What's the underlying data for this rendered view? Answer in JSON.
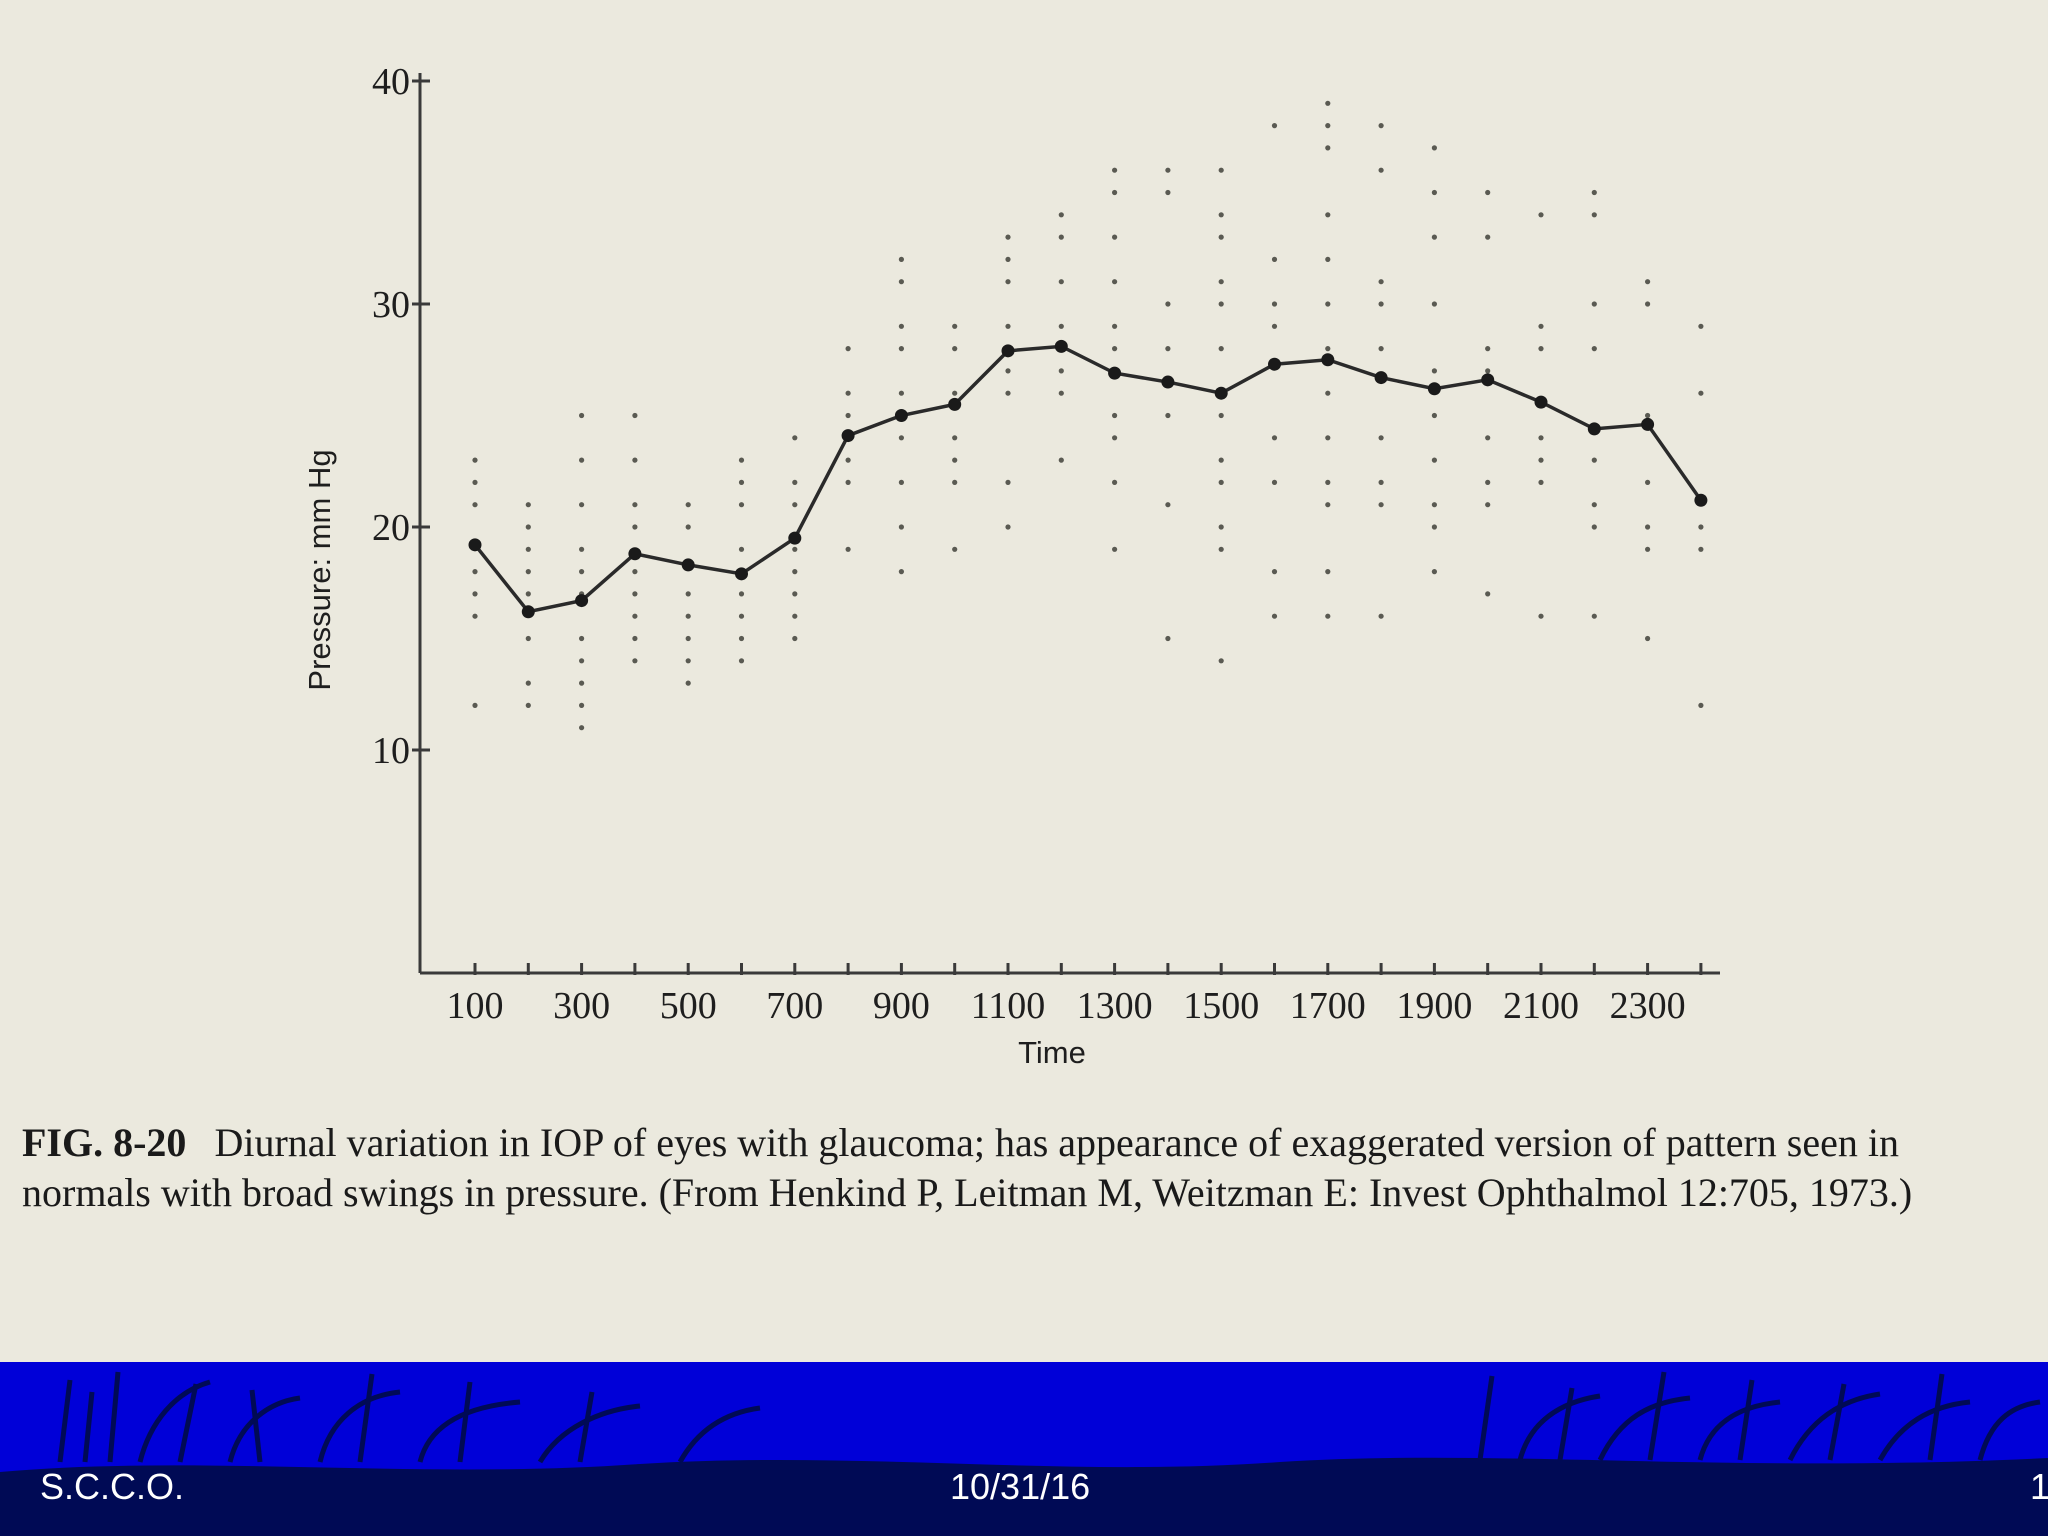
{
  "chart_data": {
    "type": "line",
    "xlabel": "Time",
    "ylabel": "Pressure: mm Hg",
    "x_ticks": [
      "100",
      "300",
      "500",
      "700",
      "900",
      "1100",
      "1300",
      "1500",
      "1700",
      "1900",
      "2100",
      "2300"
    ],
    "y_ticks": [
      "10",
      "20",
      "30",
      "40"
    ],
    "xlim": [
      100,
      2300
    ],
    "ylim": [
      0,
      40
    ],
    "grid": false,
    "series": [
      {
        "x": [
          100,
          200,
          300,
          400,
          500,
          600,
          700,
          800,
          900,
          1000,
          1100,
          1200,
          1300,
          1400,
          1500,
          1600,
          1700,
          1800,
          1900,
          2000,
          2100,
          2200,
          2300,
          2400
        ],
        "values": [
          19.2,
          16.2,
          16.7,
          18.8,
          18.3,
          17.9,
          19.5,
          24.1,
          25.0,
          25.5,
          27.9,
          28.1,
          26.9,
          26.5,
          26.0,
          27.3,
          27.5,
          26.7,
          26.2,
          26.6,
          25.6,
          24.4,
          24.6,
          21.2
        ]
      }
    ],
    "scatter": [
      {
        "x": 100,
        "y": [
          23,
          22,
          21,
          18,
          17,
          16,
          12
        ]
      },
      {
        "x": 200,
        "y": [
          21,
          20,
          19,
          18,
          17,
          15,
          13,
          12
        ]
      },
      {
        "x": 300,
        "y": [
          25,
          23,
          21,
          19,
          18,
          17,
          15,
          14,
          13,
          12,
          11
        ]
      },
      {
        "x": 400,
        "y": [
          25,
          23,
          21,
          20,
          18,
          17,
          16,
          15,
          14
        ]
      },
      {
        "x": 500,
        "y": [
          21,
          20,
          17,
          16,
          15,
          14,
          13
        ]
      },
      {
        "x": 600,
        "y": [
          23,
          22,
          21,
          19,
          17,
          16,
          15,
          14
        ]
      },
      {
        "x": 700,
        "y": [
          24,
          22,
          21,
          19,
          18,
          17,
          16,
          15
        ]
      },
      {
        "x": 800,
        "y": [
          28,
          26,
          25,
          23,
          22,
          19
        ]
      },
      {
        "x": 900,
        "y": [
          32,
          31,
          29,
          28,
          26,
          24,
          22,
          20,
          18
        ]
      },
      {
        "x": 1000,
        "y": [
          29,
          28,
          26,
          24,
          23,
          22,
          19
        ]
      },
      {
        "x": 1100,
        "y": [
          33,
          32,
          31,
          29,
          27,
          26,
          22,
          20
        ]
      },
      {
        "x": 1200,
        "y": [
          34,
          33,
          31,
          29,
          27,
          26,
          23
        ]
      },
      {
        "x": 1300,
        "y": [
          36,
          35,
          33,
          31,
          29,
          28,
          25,
          24,
          22,
          19
        ]
      },
      {
        "x": 1400,
        "y": [
          36,
          35,
          30,
          28,
          25,
          21,
          15
        ]
      },
      {
        "x": 1500,
        "y": [
          36,
          34,
          33,
          31,
          30,
          28,
          25,
          23,
          22,
          20,
          19,
          14
        ]
      },
      {
        "x": 1600,
        "y": [
          38,
          32,
          30,
          29,
          24,
          22,
          18,
          16
        ]
      },
      {
        "x": 1700,
        "y": [
          39,
          38,
          37,
          34,
          32,
          30,
          28,
          26,
          24,
          22,
          21,
          18,
          16
        ]
      },
      {
        "x": 1800,
        "y": [
          38,
          36,
          31,
          30,
          28,
          24,
          22,
          21,
          16
        ]
      },
      {
        "x": 1900,
        "y": [
          37,
          35,
          33,
          30,
          27,
          25,
          23,
          21,
          20,
          18
        ]
      },
      {
        "x": 2000,
        "y": [
          35,
          33,
          28,
          27,
          24,
          22,
          21,
          17
        ]
      },
      {
        "x": 2100,
        "y": [
          34,
          29,
          28,
          24,
          23,
          22,
          16
        ]
      },
      {
        "x": 2200,
        "y": [
          35,
          34,
          30,
          28,
          23,
          21,
          20,
          16
        ]
      },
      {
        "x": 2300,
        "y": [
          31,
          30,
          25,
          22,
          20,
          19,
          15
        ]
      },
      {
        "x": 2400,
        "y": [
          29,
          26,
          20,
          19,
          12
        ]
      }
    ]
  },
  "caption": {
    "label": "FIG. 8-20",
    "text": "Diurnal variation in IOP of eyes with glaucoma; has appearance of exaggerated version of pattern seen in normals with broad swings in pressure. (From Henkind P, Leitman M, Weitzman E: Invest Ophthalmol 12:705, 1973.)"
  },
  "footer": {
    "left": "S.C.C.O.",
    "center": "10/31/16",
    "right": "1"
  },
  "colors": {
    "background": "#ebe9de",
    "footer_band": "#0000d8",
    "footer_text": "#ffffff"
  }
}
